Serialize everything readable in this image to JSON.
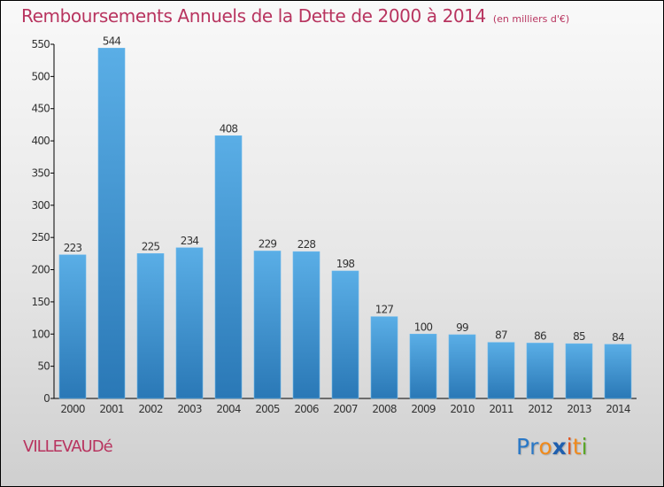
{
  "header": {
    "title": "Remboursements Annuels de la Dette de 2000 à 2014",
    "subtitle": "(en milliers d'€)"
  },
  "footer": {
    "city": "VILLEVAUDé",
    "logo": {
      "letters": [
        {
          "char": "P",
          "color": "#2a78c6"
        },
        {
          "char": "r",
          "color": "#2a78c6"
        },
        {
          "char": "o",
          "color": "#f08a1c"
        },
        {
          "char": "x",
          "color": "#1f5fae"
        },
        {
          "char": "i",
          "color": "#e2531d"
        },
        {
          "char": "t",
          "color": "#f08a1c"
        },
        {
          "char": "i",
          "color": "#5aa629"
        }
      ]
    }
  },
  "colors": {
    "bar_top": "#5aaee6",
    "bar_bottom": "#2a78b6",
    "title": "#b8345f",
    "axis": "#000000",
    "text": "#333333"
  },
  "chart_data": {
    "type": "bar",
    "title": "Remboursements Annuels de la Dette de 2000 à 2014",
    "subtitle": "(en milliers d'€)",
    "xlabel": "",
    "ylabel": "",
    "categories": [
      "2000",
      "2001",
      "2002",
      "2003",
      "2004",
      "2005",
      "2006",
      "2007",
      "2008",
      "2009",
      "2010",
      "2011",
      "2012",
      "2013",
      "2014"
    ],
    "values": [
      223,
      544,
      225,
      234,
      408,
      229,
      228,
      198,
      127,
      100,
      99,
      87,
      86,
      85,
      84
    ],
    "ylim": [
      0,
      550
    ],
    "yticks": [
      0,
      50,
      100,
      150,
      200,
      250,
      300,
      350,
      400,
      450,
      500,
      550
    ],
    "grid": false,
    "legend": "none",
    "data_labels": true
  }
}
